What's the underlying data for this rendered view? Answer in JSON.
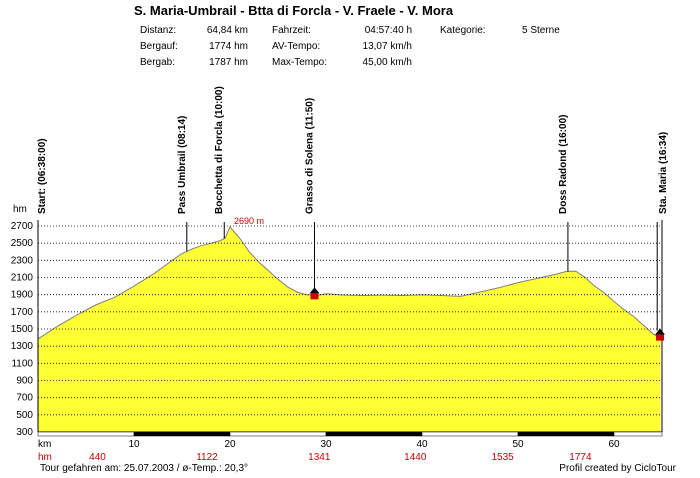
{
  "title": "S. Maria-Umbrail - Btta di Forcla - V. Fraele - V. Mora",
  "stats": {
    "distanz_label": "Distanz:",
    "distanz_value": "64,84 km",
    "bergauf_label": "Bergauf:",
    "bergauf_value": "1774 hm",
    "bergab_label": "Bergab:",
    "bergab_value": "1787 hm",
    "fahrzeit_label": "Fahrzeit:",
    "fahrzeit_value": "04:57:40 h",
    "avtempo_label": "AV-Tempo:",
    "avtempo_value": "13,07 km/h",
    "maxtempo_label": "Max-Tempo:",
    "maxtempo_value": "45,00 km/h",
    "kategorie_label": "Kategorie:",
    "kategorie_value": "5 Sterne"
  },
  "footer": {
    "left": "Tour gefahren am: 25.07.2003  /  ø-Temp.: 20,3°",
    "right": "Profil created by CicloTour"
  },
  "colors": {
    "fill": "#ffff33",
    "marker": "#cc0000",
    "text_red": "#cc0000",
    "grid": "#000000"
  },
  "chart_data": {
    "type": "area",
    "ylabel": "hm",
    "xlabel": "km",
    "ylim": [
      300,
      2700
    ],
    "xlim": [
      0,
      65
    ],
    "yticks": [
      "2700",
      "2500",
      "2300",
      "2100",
      "1900",
      "1700",
      "1500",
      "1300",
      "1100",
      "900",
      "700",
      "500",
      "300"
    ],
    "xticks": [
      {
        "x": 10,
        "label": "10"
      },
      {
        "x": 20,
        "label": "20"
      },
      {
        "x": 30,
        "label": "30"
      },
      {
        "x": 40,
        "label": "40"
      },
      {
        "x": 50,
        "label": "50"
      },
      {
        "x": 60,
        "label": "60"
      }
    ],
    "hm_row": [
      {
        "x": 0,
        "label": "hm"
      },
      {
        "x": 6.2,
        "label": "440"
      },
      {
        "x": 17.6,
        "label": "1122"
      },
      {
        "x": 29.3,
        "label": "1341"
      },
      {
        "x": 39.3,
        "label": "1440"
      },
      {
        "x": 48.4,
        "label": "1535"
      },
      {
        "x": 56.5,
        "label": "1774"
      }
    ],
    "x": [
      0,
      2,
      4,
      6,
      8,
      10,
      11,
      12,
      13,
      14,
      15,
      16,
      17,
      18,
      19,
      19.5,
      20,
      21,
      22,
      23,
      24,
      25,
      26,
      27,
      28,
      29,
      30,
      32,
      34,
      36,
      38,
      40,
      42,
      44,
      46,
      48,
      50,
      52,
      54,
      55,
      56,
      57,
      58,
      59,
      60,
      61,
      62,
      63,
      64,
      64.84
    ],
    "y": [
      1385,
      1530,
      1660,
      1780,
      1870,
      2000,
      2070,
      2140,
      2220,
      2300,
      2380,
      2430,
      2470,
      2500,
      2530,
      2560,
      2690,
      2560,
      2400,
      2280,
      2180,
      2080,
      1990,
      1930,
      1900,
      1890,
      1910,
      1895,
      1890,
      1895,
      1890,
      1900,
      1890,
      1880,
      1930,
      1980,
      2040,
      2090,
      2140,
      2170,
      2175,
      2100,
      2000,
      1920,
      1820,
      1730,
      1650,
      1550,
      1450,
      1385
    ],
    "peak_label": {
      "x": 20,
      "y": 2690,
      "label": "2690 m"
    },
    "waypoints": [
      {
        "x": 0,
        "label": "Start: (06:38:00)",
        "marker": false
      },
      {
        "x": 15.5,
        "label": "Pass Umbrail (08:14)",
        "marker": false
      },
      {
        "x": 19.4,
        "label": "Bocchetta di Forcla (10:00)",
        "marker": false
      },
      {
        "x": 28.8,
        "label": "Grasso di Solena (11:50)",
        "marker": true
      },
      {
        "x": 55.2,
        "label": "Doss Radond (16:00)",
        "marker": false
      },
      {
        "x": 64.5,
        "label": "Sta. Maria (16:34)",
        "marker": true
      }
    ]
  }
}
